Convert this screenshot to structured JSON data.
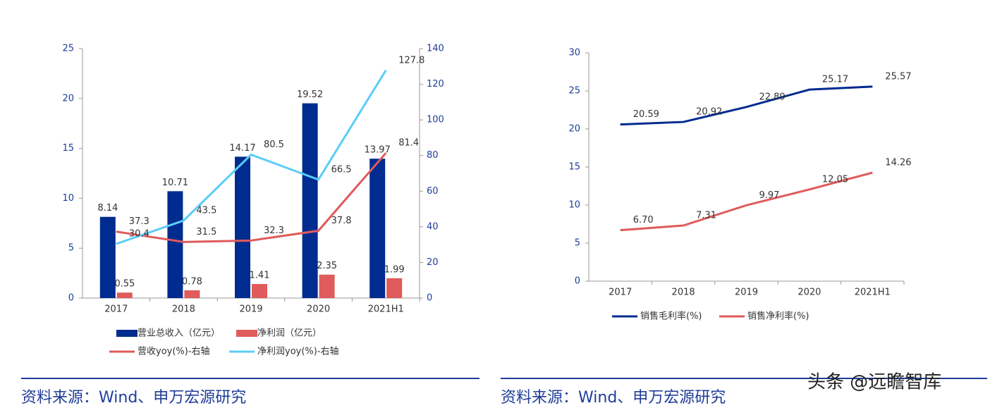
{
  "chart_data": [
    {
      "type": "bar",
      "categories": [
        "2017",
        "2018",
        "2019",
        "2020",
        "2021H1"
      ],
      "ylim": [
        0,
        25
      ],
      "yticks": [
        0,
        5,
        10,
        15,
        20,
        25
      ],
      "y2lim": [
        0,
        140
      ],
      "y2ticks": [
        0,
        20,
        40,
        60,
        80,
        100,
        120,
        140
      ],
      "series": [
        {
          "name": "营业总收入（亿元）",
          "type": "bar",
          "color": "#002B8F",
          "values": [
            8.14,
            10.71,
            14.17,
            19.52,
            13.97
          ]
        },
        {
          "name": "净利润（亿元）",
          "type": "bar",
          "color": "#E05B5B",
          "values": [
            0.55,
            0.78,
            1.41,
            2.35,
            1.99
          ]
        },
        {
          "name": "营收yoy(%)-右轴",
          "type": "line",
          "axis": "y2",
          "color": "#E05B5B",
          "values": [
            37.3,
            31.5,
            32.3,
            37.8,
            81.4
          ]
        },
        {
          "name": "净利润yoy(%)-右轴",
          "type": "line",
          "axis": "y2",
          "color": "#5BCDF8",
          "values": [
            30.4,
            43.5,
            80.5,
            66.5,
            127.8
          ]
        }
      ]
    },
    {
      "type": "line",
      "categories": [
        "2017",
        "2018",
        "2019",
        "2020",
        "2021H1"
      ],
      "ylim": [
        0,
        30
      ],
      "yticks": [
        0,
        5,
        10,
        15,
        20,
        25,
        30
      ],
      "series": [
        {
          "name": "销售毛利率(%)",
          "color": "#002B8F",
          "values": [
            20.59,
            20.92,
            22.89,
            25.17,
            25.57
          ]
        },
        {
          "name": "销售净利率(%)",
          "color": "#E05B5B",
          "values": [
            6.7,
            7.31,
            9.97,
            12.05,
            14.26
          ],
          "value_labels": [
            "6.70",
            "7.31",
            "9.97",
            "12.05",
            "14.26"
          ]
        }
      ]
    }
  ],
  "sources": [
    "资料来源：Wind、申万宏源研究",
    "资料来源：Wind、申万宏源研究"
  ],
  "watermark": "头条 @远瞻智库"
}
